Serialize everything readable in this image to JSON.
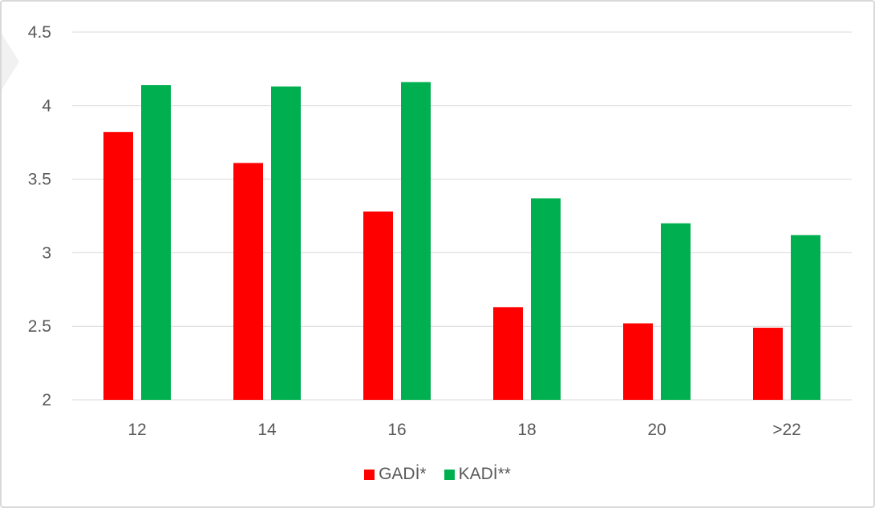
{
  "chart_data": {
    "type": "bar",
    "categories": [
      "12",
      "14",
      "16",
      "18",
      "20",
      ">22"
    ],
    "series": [
      {
        "name": "GADİ*",
        "color": "#ff0000",
        "values": [
          3.82,
          3.61,
          3.28,
          2.63,
          2.52,
          2.49
        ]
      },
      {
        "name": "KADİ**",
        "color": "#00b050",
        "values": [
          4.14,
          4.13,
          4.16,
          3.37,
          3.2,
          3.12
        ]
      }
    ],
    "ylim": [
      2,
      4.5
    ],
    "yticks": [
      "2",
      "2.5",
      "3",
      "3.5",
      "4",
      "4.5"
    ],
    "grid": true,
    "legend_position": "bottom"
  }
}
